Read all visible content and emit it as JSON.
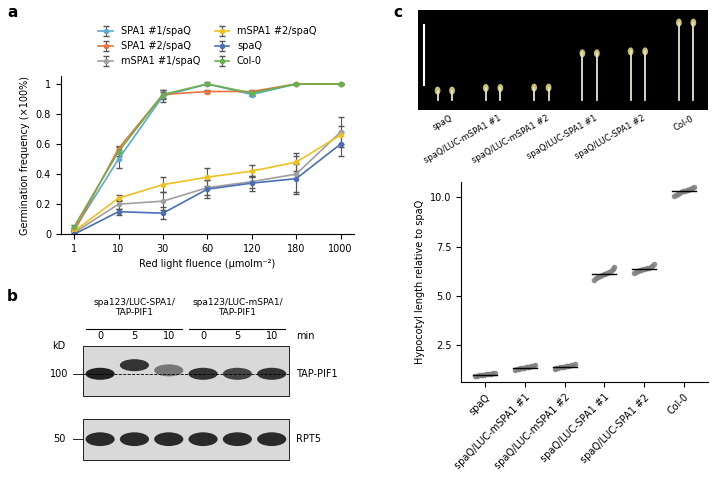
{
  "chart_data": [
    {
      "panel_label": "a",
      "type": "line",
      "x_label": "Red light fluence (μmolm⁻²)",
      "y_label": "Germination frequency (×100%)",
      "categories": [
        "1",
        "10",
        "30",
        "60",
        "120",
        "180",
        "1000"
      ],
      "ylim": [
        0,
        1.05
      ],
      "yticks": [
        0,
        0.2,
        0.4,
        0.6,
        0.8,
        1
      ],
      "marker": "o",
      "legend": "top",
      "grid": false,
      "series": [
        {
          "name": "SPA1 #1/spaQ",
          "color": "#5aa9d6",
          "values": [
            0.03,
            0.5,
            0.92,
            1.0,
            0.93,
            1.0,
            1.0
          ],
          "errors": [
            0.01,
            0.06,
            0.04,
            0.01,
            0.01,
            0.0,
            0.0
          ]
        },
        {
          "name": "SPA1 #2/spaQ",
          "color": "#e8743b",
          "values": [
            0.02,
            0.57,
            0.93,
            0.95,
            0.95,
            1.0,
            1.0
          ],
          "errors": [
            0.01,
            0.02,
            0.03,
            0.01,
            0.01,
            0.0,
            0.0
          ]
        },
        {
          "name": "mSPA1 #1/spaQ",
          "color": "#a0a0a0",
          "values": [
            0.01,
            0.2,
            0.22,
            0.31,
            0.35,
            0.4,
            0.68
          ],
          "errors": [
            0.01,
            0.03,
            0.06,
            0.05,
            0.04,
            0.12,
            0.1
          ]
        },
        {
          "name": "mSPA1 #2/spaQ",
          "color": "#f0c020",
          "values": [
            0.02,
            0.24,
            0.33,
            0.38,
            0.42,
            0.48,
            0.66
          ],
          "errors": [
            0.01,
            0.02,
            0.05,
            0.06,
            0.04,
            0.06,
            0.06
          ]
        },
        {
          "name": "spaQ",
          "color": "#4a6fb5",
          "values": [
            0.0,
            0.15,
            0.14,
            0.3,
            0.34,
            0.37,
            0.6
          ],
          "errors": [
            0.0,
            0.02,
            0.04,
            0.06,
            0.05,
            0.1,
            0.08
          ]
        },
        {
          "name": "Col-0",
          "color": "#6ab04c",
          "values": [
            0.05,
            0.55,
            0.93,
            1.0,
            0.94,
            1.0,
            1.0
          ],
          "errors": [
            0.01,
            0.03,
            0.02,
            0.0,
            0.01,
            0.0,
            0.0
          ]
        }
      ]
    },
    {
      "panel_label": "c",
      "type": "dot",
      "y_label": "Hypocotyl length relative to spaQ",
      "categories": [
        "spaQ",
        "spaQ/LUC-mSPA1 #1",
        "spaQ/LUC-mSPA1 #2",
        "spaQ/LUC-SPA1 #1",
        "spaQ/LUC-SPA1 #2",
        "Col-0"
      ],
      "ylim": [
        0.6,
        10.8
      ],
      "yticks": [
        2.5,
        5.0,
        7.5,
        10.0
      ],
      "color": "#808080",
      "points": [
        [
          0.92,
          0.95,
          0.97,
          0.98,
          1.0,
          1.0,
          1.01,
          1.02,
          1.03,
          1.05,
          1.06,
          1.08
        ],
        [
          1.25,
          1.28,
          1.3,
          1.32,
          1.34,
          1.35,
          1.36,
          1.38,
          1.4,
          1.42,
          1.45,
          1.5
        ],
        [
          1.28,
          1.32,
          1.35,
          1.37,
          1.39,
          1.4,
          1.41,
          1.43,
          1.45,
          1.48,
          1.5,
          1.55
        ],
        [
          5.8,
          5.9,
          5.95,
          6.0,
          6.05,
          6.1,
          6.1,
          6.15,
          6.2,
          6.25,
          6.35,
          6.45
        ],
        [
          6.15,
          6.2,
          6.25,
          6.3,
          6.33,
          6.35,
          6.37,
          6.4,
          6.42,
          6.45,
          6.5,
          6.6
        ],
        [
          10.05,
          10.1,
          10.15,
          10.2,
          10.25,
          10.3,
          10.3,
          10.35,
          10.4,
          10.45,
          10.5,
          10.55
        ]
      ],
      "medians": [
        1.0,
        1.355,
        1.405,
        6.1,
        6.36,
        10.3
      ]
    }
  ],
  "blot": {
    "panel_label": "b",
    "groups": [
      {
        "lines": [
          "spa123/LUC-SPA1/",
          "TAP-PIF1"
        ],
        "times": [
          0,
          5,
          10
        ]
      },
      {
        "lines": [
          "spa123/LUC-mSPA1/",
          "TAP-PIF1"
        ],
        "times": [
          0,
          5,
          10
        ]
      }
    ],
    "time_unit": "min",
    "size_unit": "kD",
    "markers": [
      100,
      50
    ],
    "bands": [
      "TAP-PIF1",
      "RPT5"
    ]
  },
  "photo": {
    "labels": [
      "spaQ",
      "spaQ/LUC-mSPA1 #1",
      "spaQ/LUC-mSPA1 #2",
      "spaQ/LUC-SPA1 #1",
      "spaQ/LUC-SPA1 #2",
      "Col-0"
    ]
  }
}
